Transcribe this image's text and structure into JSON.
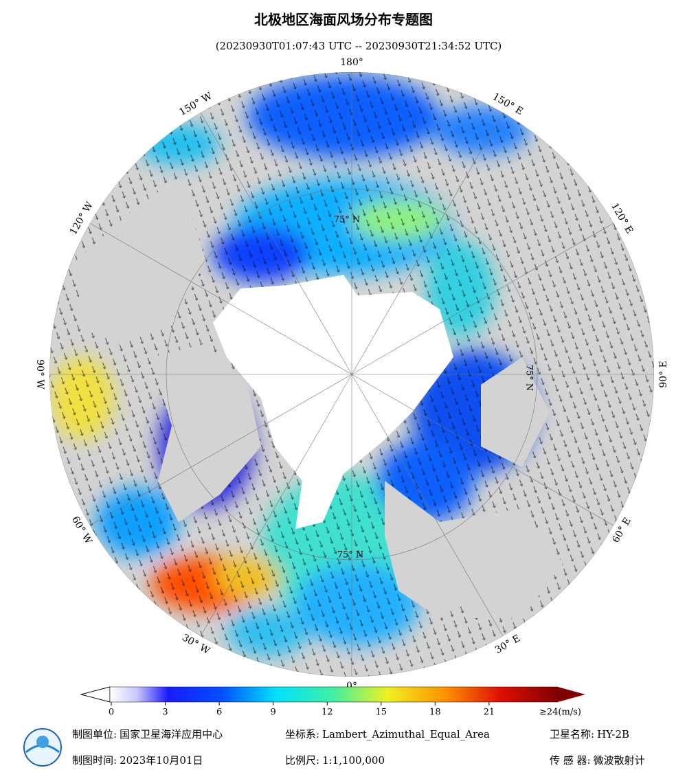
{
  "header": {
    "title": "北极地区海面风场分布专题图",
    "subtitle": "(20230930T01:07:43 UTC -- 20230930T21:34:52 UTC)"
  },
  "map": {
    "longitude_labels": [
      "0°",
      "30° E",
      "60° E",
      "90° E",
      "120° E",
      "150° E",
      "180°",
      "150° W",
      "120° W",
      "90° W",
      "60° W",
      "30° W"
    ],
    "latitude_labels": [
      "75° N",
      "75° N",
      "75° N"
    ]
  },
  "colorbar": {
    "ticks": [
      0,
      3,
      6,
      9,
      12,
      15,
      18,
      21
    ],
    "max_label": "≥24(m/s)"
  },
  "footer": {
    "rows": [
      [
        {
          "label": "制图单位:",
          "value": "国家卫星海洋应用中心"
        },
        {
          "label": "坐标系:",
          "value": "Lambert_Azimuthal_Equal_Area"
        },
        {
          "label": "卫星名称:",
          "value": "HY-2B"
        }
      ],
      [
        {
          "label": "制图时间:",
          "value": "2023年10月01日"
        },
        {
          "label": "比例尺:",
          "value": "1:1,100,000"
        },
        {
          "label": "传 感 器:",
          "value": "微波散射计"
        }
      ]
    ]
  }
}
